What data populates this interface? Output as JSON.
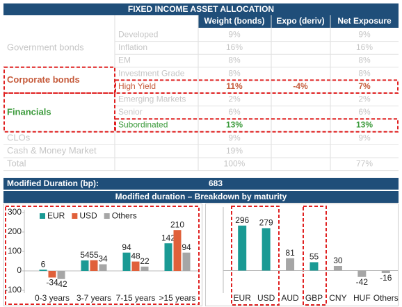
{
  "table": {
    "title": "FIXED INCOME ASSET ALLOCATION",
    "columns": [
      "Weight (bonds)",
      "Expo (deriv)",
      "Net Exposure"
    ],
    "sections": [
      {
        "label": "Government bonds",
        "rows": [
          {
            "sub": "Developed",
            "weight": "9%",
            "net": "9%"
          },
          {
            "sub": "Inflation",
            "weight": "16%",
            "net": "16%"
          },
          {
            "sub": "EM",
            "weight": "8%",
            "net": "8%"
          }
        ]
      },
      {
        "label": "Corporate bonds",
        "color": "#c55a3a",
        "rows": [
          {
            "sub": "Investment Grade",
            "weight": "8%",
            "net": "8%"
          },
          {
            "sub": "High Yield",
            "weight": "11%",
            "expo": "-4%",
            "net": "7%",
            "color": "#c55a3a"
          }
        ]
      },
      {
        "label": "Financials",
        "color": "#3a9a3a",
        "rows": [
          {
            "sub": "Emerging Markets",
            "weight": "2%",
            "net": "2%"
          },
          {
            "sub": "Senior",
            "weight": "6%",
            "net": "6%"
          },
          {
            "sub": "Subordinated",
            "weight": "13%",
            "net": "13%",
            "color": "#3a9a3a"
          }
        ]
      },
      {
        "label": "CLOs",
        "weight": "9%",
        "net": "9%"
      },
      {
        "label": "Cash & Money Market",
        "weight": "19%"
      },
      {
        "label": "Total",
        "weight": "100%",
        "net": "77%"
      }
    ]
  },
  "duration": {
    "label": "Modified Duration (bp):",
    "value": 683
  },
  "breakdown_title": "Modified duration – Breakdown by maturity",
  "chart_data": [
    {
      "type": "bar",
      "categories": [
        "0-3 years",
        "3-7 years",
        "7-15 years",
        ">15 years"
      ],
      "series": [
        {
          "name": "EUR",
          "color": "#1a9a94",
          "values": [
            6,
            54,
            94,
            142
          ]
        },
        {
          "name": "USD",
          "color": "#e0603a",
          "values": [
            -34,
            55,
            48,
            210
          ]
        },
        {
          "name": "Others",
          "color": "#a6a6a6",
          "values": [
            -42,
            34,
            22,
            94
          ]
        }
      ],
      "ylim": [
        -100,
        300
      ],
      "yticks": [
        -100,
        0,
        100,
        200,
        300
      ],
      "legend": "top-left"
    },
    {
      "type": "bar",
      "categories": [
        "EUR",
        "USD",
        "AUD",
        "GBP",
        "CNY",
        "HUF",
        "Others"
      ],
      "values": [
        296,
        279,
        81,
        55,
        30,
        -42,
        -16
      ],
      "colors": [
        "#1a9a94",
        "#1a9a94",
        "#a6a6a6",
        "#1a9a94",
        "#a6a6a6",
        "#a6a6a6",
        "#a6a6a6"
      ],
      "ylim": [
        -130,
        400
      ]
    }
  ]
}
